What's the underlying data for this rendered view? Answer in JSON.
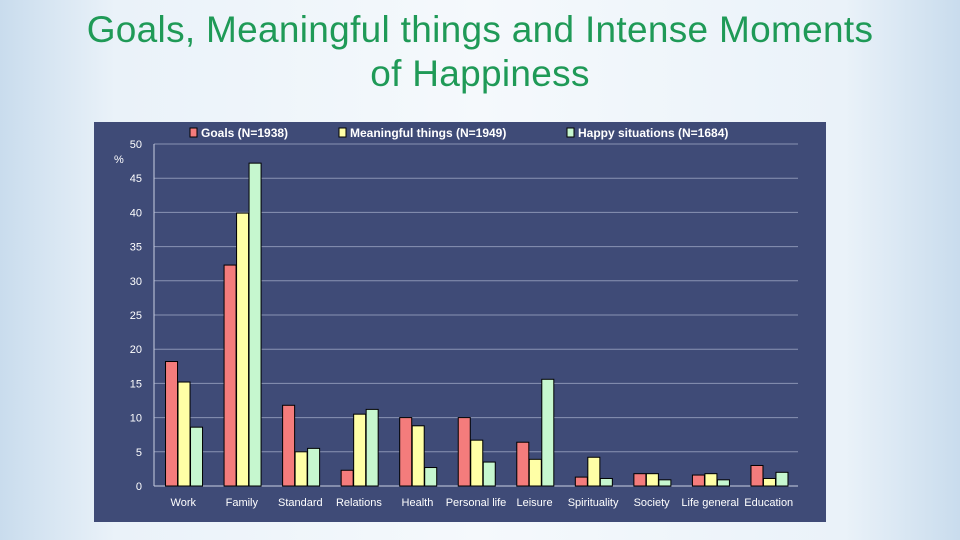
{
  "slide": {
    "title_line1": "Goals, Meaningful things and Intense Moments",
    "title_line2": "of Happiness"
  },
  "colors": {
    "title": "#1f9a57",
    "panel": "#3f4b77",
    "grid": "#8a93b3",
    "series": [
      "#f47c7c",
      "#ffffa6",
      "#c6f7cf"
    ]
  },
  "chart_data": {
    "type": "bar",
    "ylabel": "%",
    "ylim": [
      0,
      50
    ],
    "yticks": [
      0,
      5,
      10,
      15,
      20,
      25,
      30,
      35,
      40,
      45,
      50
    ],
    "grid": true,
    "legend_position": "top",
    "categories": [
      "Work",
      "Family",
      "Standard",
      "Relations",
      "Health",
      "Personal life",
      "Leisure",
      "Spirituality",
      "Society",
      "Life general",
      "Education"
    ],
    "series": [
      {
        "name": "Goals (N=1938)",
        "values": [
          18.2,
          32.3,
          11.8,
          2.3,
          10.0,
          10.0,
          6.4,
          1.3,
          1.8,
          1.6,
          3.0
        ]
      },
      {
        "name": "Meaningful things (N=1949)",
        "values": [
          15.2,
          39.9,
          5.0,
          10.5,
          8.8,
          6.7,
          3.9,
          4.2,
          1.8,
          1.8,
          1.1
        ]
      },
      {
        "name": "Happy situations (N=1684)",
        "values": [
          8.6,
          47.2,
          5.5,
          11.2,
          2.7,
          3.5,
          15.6,
          1.1,
          0.9,
          0.9,
          2.0
        ]
      }
    ]
  }
}
